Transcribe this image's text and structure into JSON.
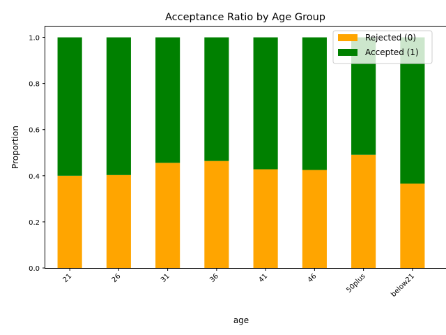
{
  "chart_data": {
    "type": "bar",
    "stacked": true,
    "title": "Acceptance Ratio by Age Group",
    "xlabel": "age",
    "ylabel": "Proportion",
    "categories": [
      "21",
      "26",
      "31",
      "36",
      "41",
      "46",
      "50plus",
      "below21"
    ],
    "series": [
      {
        "name": "Rejected (0)",
        "color": "#ffa500",
        "values": [
          0.4,
          0.403,
          0.456,
          0.464,
          0.428,
          0.425,
          0.491,
          0.366
        ]
      },
      {
        "name": "Accepted (1)",
        "color": "#008000",
        "values": [
          0.6,
          0.597,
          0.544,
          0.536,
          0.572,
          0.575,
          0.509,
          0.634
        ]
      }
    ],
    "ylim": [
      0,
      1.05
    ],
    "yticks": [
      "0.0",
      "0.2",
      "0.4",
      "0.6",
      "0.8",
      "1.0"
    ],
    "grid": false,
    "legend_position": "top-right"
  }
}
